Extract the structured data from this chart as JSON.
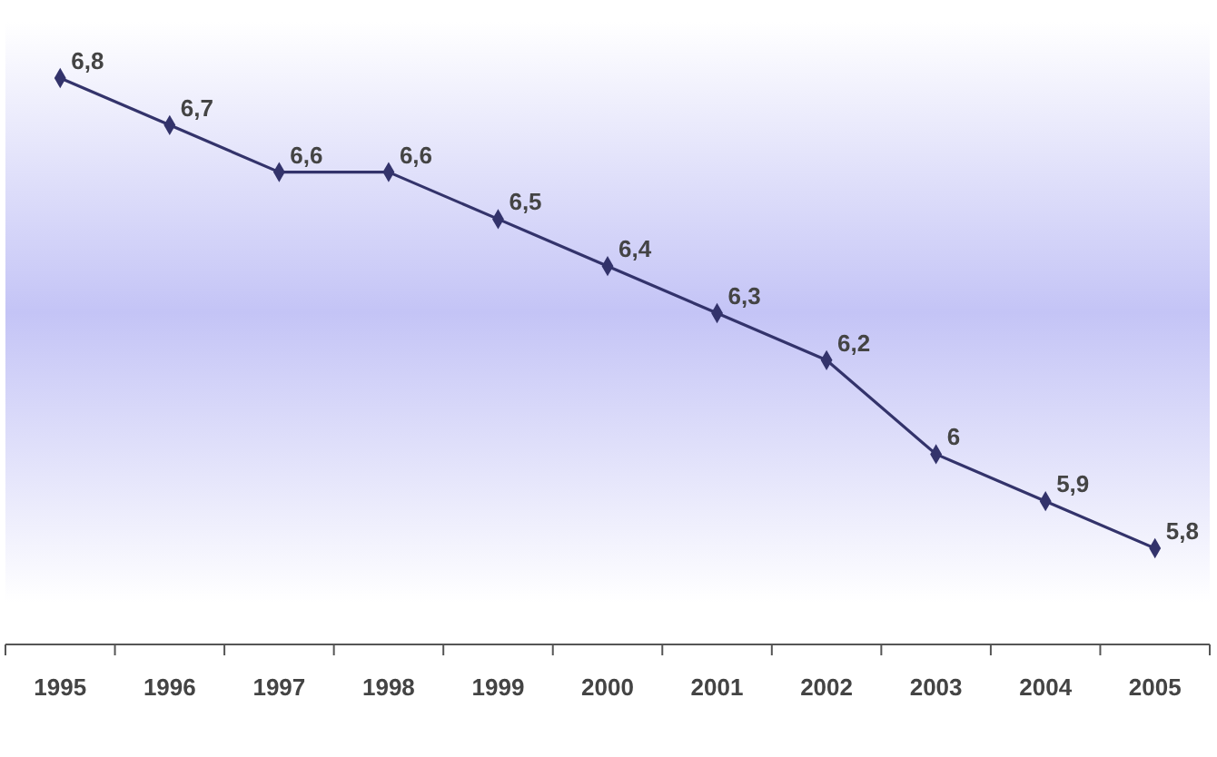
{
  "chart_data": {
    "type": "line",
    "categories": [
      "1995",
      "1996",
      "1997",
      "1998",
      "1999",
      "2000",
      "2001",
      "2002",
      "2003",
      "2004",
      "2005"
    ],
    "series": [
      {
        "color": "#33336b",
        "values": [
          6.8,
          6.7,
          6.6,
          6.6,
          6.5,
          6.4,
          6.3,
          6.2,
          6.0,
          5.9,
          5.8
        ],
        "value_labels": [
          "6,8",
          "6,7",
          "6,6",
          "6,6",
          "6,5",
          "6,4",
          "6,3",
          "6,2",
          "6",
          "5,9",
          "5,8"
        ]
      }
    ],
    "marker": "diamond",
    "line_style": "solid",
    "tick_labels": "x"
  }
}
